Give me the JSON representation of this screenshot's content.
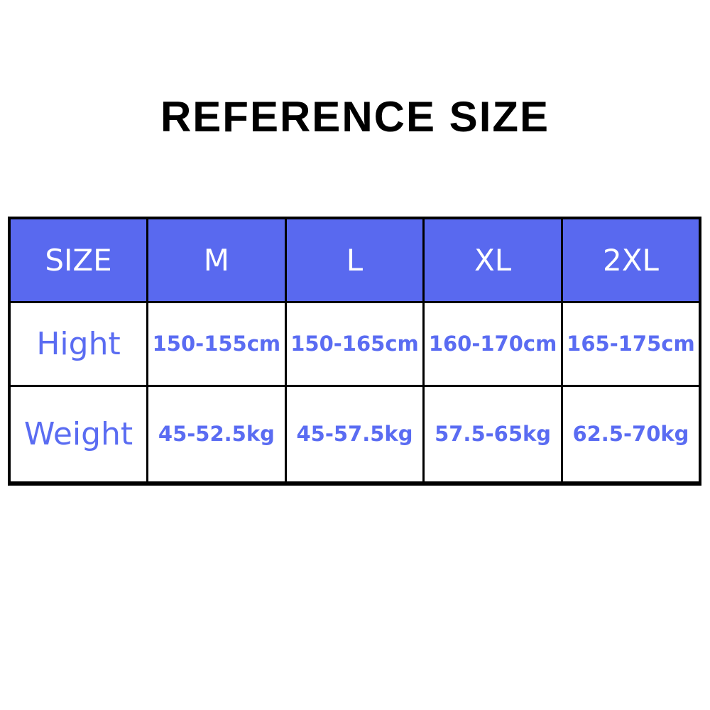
{
  "title": "REFERENCE SIZE",
  "colors": {
    "header_bg": "#5969ef",
    "body_text": "#5a6cf2",
    "border": "#000000",
    "header_text": "#ffffff",
    "background": "#ffffff",
    "title_text": "#000000"
  },
  "chart_data": {
    "type": "table",
    "title": "REFERENCE SIZE",
    "columns": [
      "SIZE",
      "M",
      "L",
      "XL",
      "2XL"
    ],
    "rows": [
      {
        "label": "Hight",
        "values": [
          "150-155cm",
          "150-165cm",
          "160-170cm",
          "165-175cm"
        ]
      },
      {
        "label": "Weight",
        "values": [
          "45-52.5kg",
          "45-57.5kg",
          "57.5-65kg",
          "62.5-70kg"
        ]
      }
    ],
    "layout_hints": {
      "header_fill": "#5969ef",
      "header_text_color": "#ffffff",
      "body_text_color": "#5a6cf2",
      "grid": "on",
      "border_color": "#000000"
    }
  }
}
